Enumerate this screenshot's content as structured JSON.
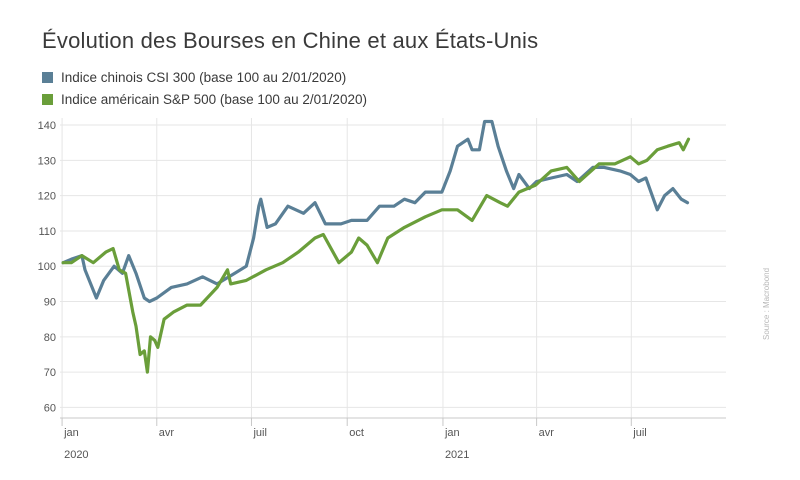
{
  "chart_data": {
    "type": "line",
    "title": "Évolution des Bourses en Chine et aux États-Unis",
    "xlabel": "",
    "ylabel": "",
    "source": "Source : Macrobond",
    "ylim": [
      57,
      142
    ],
    "yticks": [
      60,
      70,
      80,
      90,
      100,
      110,
      120,
      130,
      140
    ],
    "xlim": [
      "2019-12-30",
      "2021-09-30"
    ],
    "xticks": [
      {
        "date": "2020-01-01",
        "label": "jan",
        "year": "2020"
      },
      {
        "date": "2020-04-01",
        "label": "avr",
        "year": ""
      },
      {
        "date": "2020-07-01",
        "label": "juil",
        "year": ""
      },
      {
        "date": "2020-10-01",
        "label": "oct",
        "year": ""
      },
      {
        "date": "2021-01-01",
        "label": "jan",
        "year": "2021"
      },
      {
        "date": "2021-04-01",
        "label": "avr",
        "year": ""
      },
      {
        "date": "2021-07-01",
        "label": "juil",
        "year": ""
      }
    ],
    "grid": true,
    "legend_position": "top-left",
    "series": [
      {
        "name": "Indice chinois CSI 300 (base 100 au 2/01/2020)",
        "color": "#5a7f96",
        "points": [
          [
            "2020-01-02",
            101
          ],
          [
            "2020-01-10",
            102
          ],
          [
            "2020-01-20",
            103
          ],
          [
            "2020-01-23",
            99
          ],
          [
            "2020-02-03",
            91
          ],
          [
            "2020-02-10",
            96
          ],
          [
            "2020-02-20",
            100
          ],
          [
            "2020-02-28",
            98
          ],
          [
            "2020-03-05",
            103
          ],
          [
            "2020-03-12",
            98
          ],
          [
            "2020-03-20",
            91
          ],
          [
            "2020-03-25",
            90
          ],
          [
            "2020-04-01",
            91
          ],
          [
            "2020-04-15",
            94
          ],
          [
            "2020-04-30",
            95
          ],
          [
            "2020-05-15",
            97
          ],
          [
            "2020-05-29",
            95
          ],
          [
            "2020-06-15",
            98
          ],
          [
            "2020-06-26",
            100
          ],
          [
            "2020-07-03",
            108
          ],
          [
            "2020-07-08",
            117
          ],
          [
            "2020-07-10",
            119
          ],
          [
            "2020-07-16",
            111
          ],
          [
            "2020-07-24",
            112
          ],
          [
            "2020-08-05",
            117
          ],
          [
            "2020-08-20",
            115
          ],
          [
            "2020-08-31",
            118
          ],
          [
            "2020-09-10",
            112
          ],
          [
            "2020-09-25",
            112
          ],
          [
            "2020-10-05",
            113
          ],
          [
            "2020-10-20",
            113
          ],
          [
            "2020-11-01",
            117
          ],
          [
            "2020-11-15",
            117
          ],
          [
            "2020-11-25",
            119
          ],
          [
            "2020-12-05",
            118
          ],
          [
            "2020-12-15",
            121
          ],
          [
            "2020-12-31",
            121
          ],
          [
            "2021-01-08",
            127
          ],
          [
            "2021-01-15",
            134
          ],
          [
            "2021-01-25",
            136
          ],
          [
            "2021-01-29",
            133
          ],
          [
            "2021-02-05",
            133
          ],
          [
            "2021-02-10",
            141
          ],
          [
            "2021-02-17",
            141
          ],
          [
            "2021-02-23",
            134
          ],
          [
            "2021-03-03",
            127
          ],
          [
            "2021-03-10",
            122
          ],
          [
            "2021-03-15",
            126
          ],
          [
            "2021-03-25",
            122
          ],
          [
            "2021-04-01",
            124
          ],
          [
            "2021-04-15",
            125
          ],
          [
            "2021-04-30",
            126
          ],
          [
            "2021-05-10",
            124
          ],
          [
            "2021-05-25",
            128
          ],
          [
            "2021-06-05",
            128
          ],
          [
            "2021-06-20",
            127
          ],
          [
            "2021-06-30",
            126
          ],
          [
            "2021-07-08",
            124
          ],
          [
            "2021-07-15",
            125
          ],
          [
            "2021-07-26",
            116
          ],
          [
            "2021-08-02",
            120
          ],
          [
            "2021-08-10",
            122
          ],
          [
            "2021-08-18",
            119
          ],
          [
            "2021-08-24",
            118
          ]
        ]
      },
      {
        "name": "Indice américain S&P 500 (base 100 au 2/01/2020)",
        "color": "#6a9e3a",
        "points": [
          [
            "2020-01-02",
            101
          ],
          [
            "2020-01-10",
            101
          ],
          [
            "2020-01-20",
            103
          ],
          [
            "2020-01-31",
            101
          ],
          [
            "2020-02-12",
            104
          ],
          [
            "2020-02-19",
            105
          ],
          [
            "2020-02-25",
            99
          ],
          [
            "2020-03-02",
            98
          ],
          [
            "2020-03-09",
            87
          ],
          [
            "2020-03-12",
            83
          ],
          [
            "2020-03-16",
            75
          ],
          [
            "2020-03-20",
            76
          ],
          [
            "2020-03-23",
            70
          ],
          [
            "2020-03-26",
            80
          ],
          [
            "2020-03-30",
            79
          ],
          [
            "2020-04-02",
            77
          ],
          [
            "2020-04-08",
            85
          ],
          [
            "2020-04-17",
            87
          ],
          [
            "2020-04-30",
            89
          ],
          [
            "2020-05-13",
            89
          ],
          [
            "2020-05-29",
            94
          ],
          [
            "2020-06-08",
            99
          ],
          [
            "2020-06-11",
            95
          ],
          [
            "2020-06-26",
            96
          ],
          [
            "2020-07-15",
            99
          ],
          [
            "2020-07-31",
            101
          ],
          [
            "2020-08-15",
            104
          ],
          [
            "2020-08-31",
            108
          ],
          [
            "2020-09-08",
            109
          ],
          [
            "2020-09-23",
            101
          ],
          [
            "2020-10-05",
            104
          ],
          [
            "2020-10-12",
            108
          ],
          [
            "2020-10-20",
            106
          ],
          [
            "2020-10-30",
            101
          ],
          [
            "2020-11-09",
            108
          ],
          [
            "2020-11-25",
            111
          ],
          [
            "2020-12-15",
            114
          ],
          [
            "2020-12-31",
            116
          ],
          [
            "2021-01-15",
            116
          ],
          [
            "2021-01-29",
            113
          ],
          [
            "2021-02-12",
            120
          ],
          [
            "2021-02-25",
            118
          ],
          [
            "2021-03-04",
            117
          ],
          [
            "2021-03-15",
            121
          ],
          [
            "2021-03-31",
            123
          ],
          [
            "2021-04-15",
            127
          ],
          [
            "2021-04-30",
            128
          ],
          [
            "2021-05-12",
            124
          ],
          [
            "2021-05-31",
            129
          ],
          [
            "2021-06-15",
            129
          ],
          [
            "2021-06-30",
            131
          ],
          [
            "2021-07-08",
            129
          ],
          [
            "2021-07-16",
            130
          ],
          [
            "2021-07-26",
            133
          ],
          [
            "2021-08-05",
            134
          ],
          [
            "2021-08-16",
            135
          ],
          [
            "2021-08-20",
            133
          ],
          [
            "2021-08-25",
            136
          ]
        ]
      }
    ]
  }
}
